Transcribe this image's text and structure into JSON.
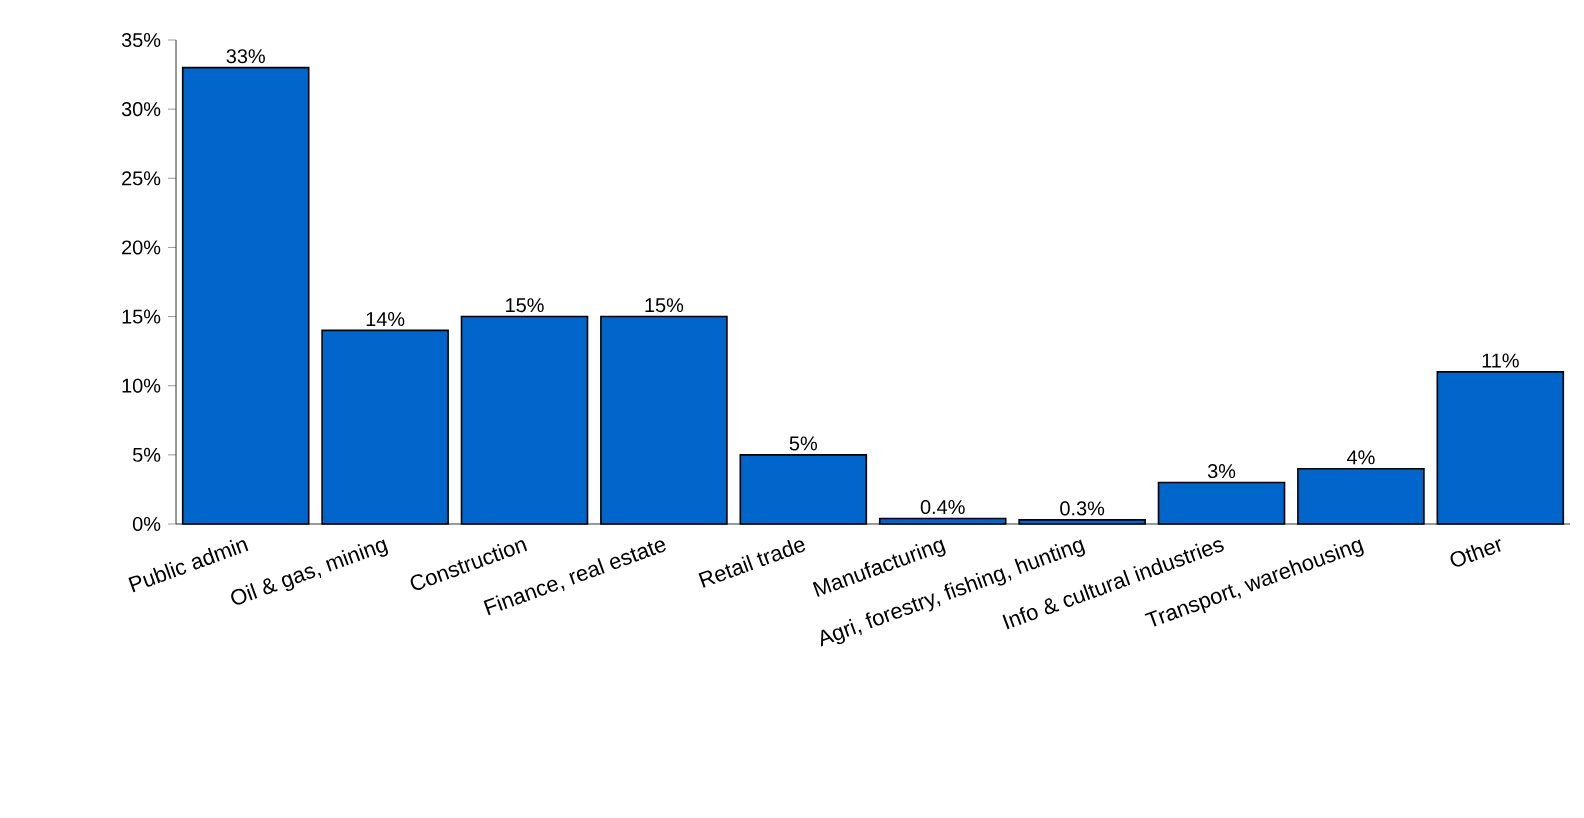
{
  "chart_data": {
    "type": "bar",
    "categories": [
      "Public admin",
      "Oil & gas, mining",
      "Construction",
      "Finance, real estate",
      "Retail trade",
      "Manufacturing",
      "Agri, forestry, fishing, hunting",
      "Info & cultural industries",
      "Transport, warehousing",
      "Other"
    ],
    "values": [
      33,
      14,
      15,
      15,
      5,
      0.4,
      0.3,
      3,
      4,
      11
    ],
    "value_labels": [
      "33%",
      "14%",
      "15%",
      "15%",
      "5%",
      "0.4%",
      "0.3%",
      "3%",
      "4%",
      "11%"
    ],
    "color": "#0066cc",
    "ylim": [
      0,
      35
    ],
    "yticks": [
      {
        "value": 0,
        "label": "0%"
      },
      {
        "value": 5,
        "label": "5%"
      },
      {
        "value": 10,
        "label": "10%"
      },
      {
        "value": 15,
        "label": "15%"
      },
      {
        "value": 20,
        "label": "20%"
      },
      {
        "value": 25,
        "label": "25%"
      },
      {
        "value": 30,
        "label": "30%"
      },
      {
        "value": 35,
        "label": "35%"
      }
    ]
  }
}
